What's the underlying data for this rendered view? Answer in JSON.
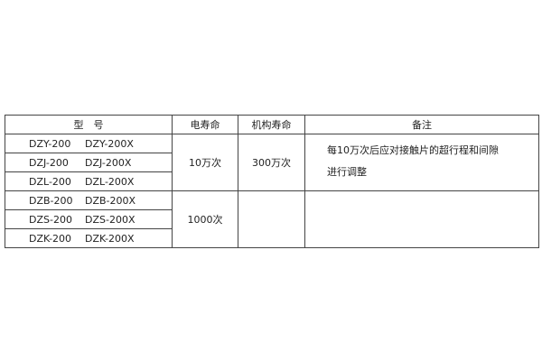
{
  "table": {
    "headers": [
      "型　号",
      "电寿命",
      "机构寿命",
      "备注"
    ],
    "rows": [
      {
        "model": "DZY-200",
        "model_x": "DZY-200X"
      },
      {
        "model": "DZJ-200",
        "model_x": "DZJ-200X"
      },
      {
        "model": "DZL-200",
        "model_x": "DZL-200X"
      },
      {
        "model": "DZB-200",
        "model_x": "DZB-200X"
      },
      {
        "model": "DZS-200",
        "model_x": "DZS-200X"
      },
      {
        "model": "DZK-200",
        "model_x": "DZK-200X"
      }
    ],
    "group1": {
      "electric_life": "10万次",
      "mech_life": "300万次",
      "note_line1": "每10万次后应对接触片的超行程和间隙",
      "note_line2": "进行调整"
    },
    "group2": {
      "electric_life": "1000次",
      "mech_life": "",
      "note": ""
    }
  }
}
